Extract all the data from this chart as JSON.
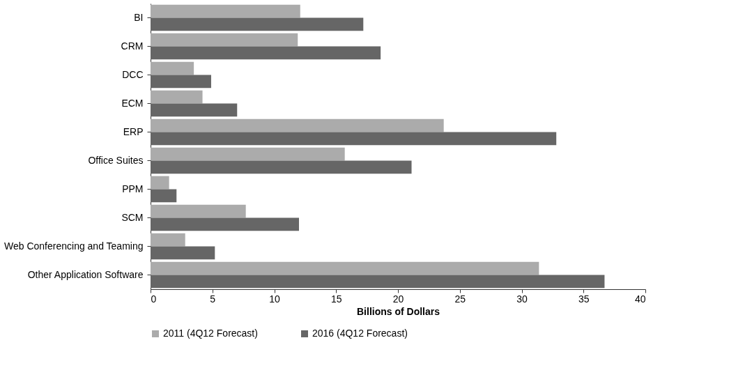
{
  "chart_data": {
    "type": "bar",
    "orientation": "horizontal",
    "xlabel": "Billions of Dollars",
    "categories": [
      "BI",
      "CRM",
      "DCC",
      "ECM",
      "ERP",
      "Office Suites",
      "PPM",
      "SCM",
      "Web Conferencing and Teaming",
      "Other Application Software"
    ],
    "series": [
      {
        "name": "2011 (4Q12 Forecast)",
        "color": "#ababab",
        "values": [
          12.1,
          11.9,
          3.5,
          4.2,
          23.7,
          15.7,
          1.5,
          7.7,
          2.8,
          31.4
        ]
      },
      {
        "name": "2016 (4Q12 Forecast)",
        "color": "#666666",
        "values": [
          17.2,
          18.6,
          4.9,
          7.0,
          32.8,
          21.1,
          2.1,
          12.0,
          5.2,
          36.7
        ]
      }
    ],
    "xlim": [
      0,
      40
    ],
    "xticks": [
      0,
      5,
      10,
      15,
      20,
      25,
      30,
      35,
      40
    ],
    "grid": false,
    "legend": "bottom"
  }
}
